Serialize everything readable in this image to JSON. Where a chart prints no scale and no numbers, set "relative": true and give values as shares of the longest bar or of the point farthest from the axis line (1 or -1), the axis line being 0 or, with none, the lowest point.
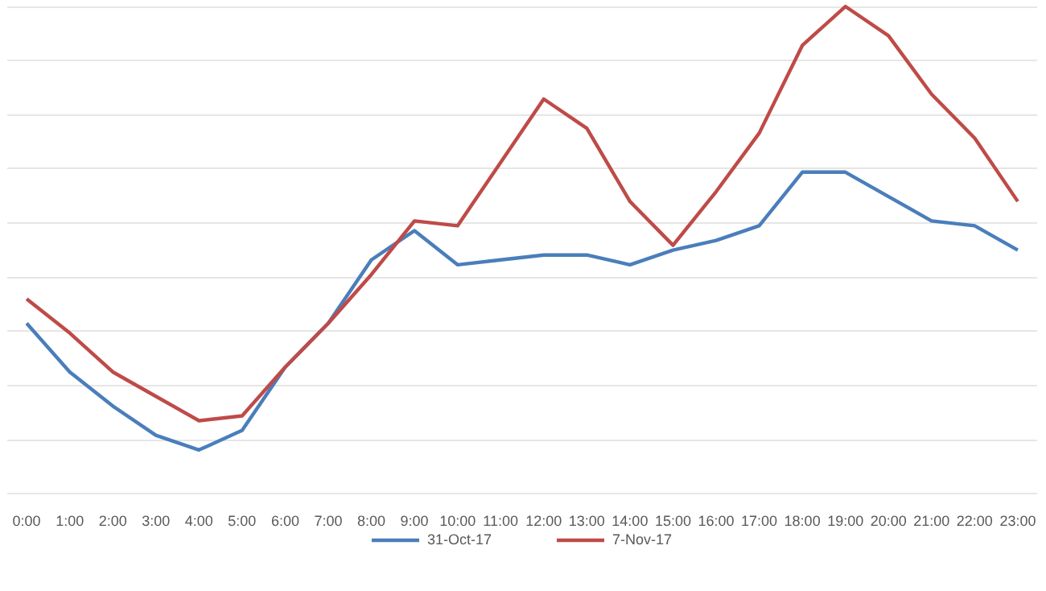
{
  "chart_data": {
    "type": "line",
    "relative": true,
    "grid": "y",
    "legend": "bottom",
    "marker": "none",
    "line_style": "solid",
    "categories": [
      "0:00",
      "1:00",
      "2:00",
      "3:00",
      "4:00",
      "5:00",
      "6:00",
      "7:00",
      "8:00",
      "9:00",
      "10:00",
      "11:00",
      "12:00",
      "13:00",
      "14:00",
      "15:00",
      "16:00",
      "17:00",
      "18:00",
      "19:00",
      "20:00",
      "21:00",
      "22:00",
      "23:00"
    ],
    "series": [
      {
        "name": "31-Oct-17",
        "color": "#4a7ebb",
        "values": [
          0.35,
          0.25,
          0.18,
          0.12,
          0.09,
          0.13,
          0.26,
          0.35,
          0.48,
          0.54,
          0.47,
          0.48,
          0.49,
          0.49,
          0.47,
          0.5,
          0.52,
          0.55,
          0.66,
          0.66,
          0.61,
          0.56,
          0.55,
          0.5
        ]
      },
      {
        "name": "7-Nov-17",
        "color": "#be4b48",
        "values": [
          0.4,
          0.33,
          0.25,
          0.2,
          0.15,
          0.16,
          0.26,
          0.35,
          0.45,
          0.56,
          0.55,
          0.68,
          0.81,
          0.75,
          0.6,
          0.51,
          0.62,
          0.74,
          0.92,
          1,
          0.94,
          0.82,
          0.73,
          0.6
        ]
      }
    ]
  }
}
